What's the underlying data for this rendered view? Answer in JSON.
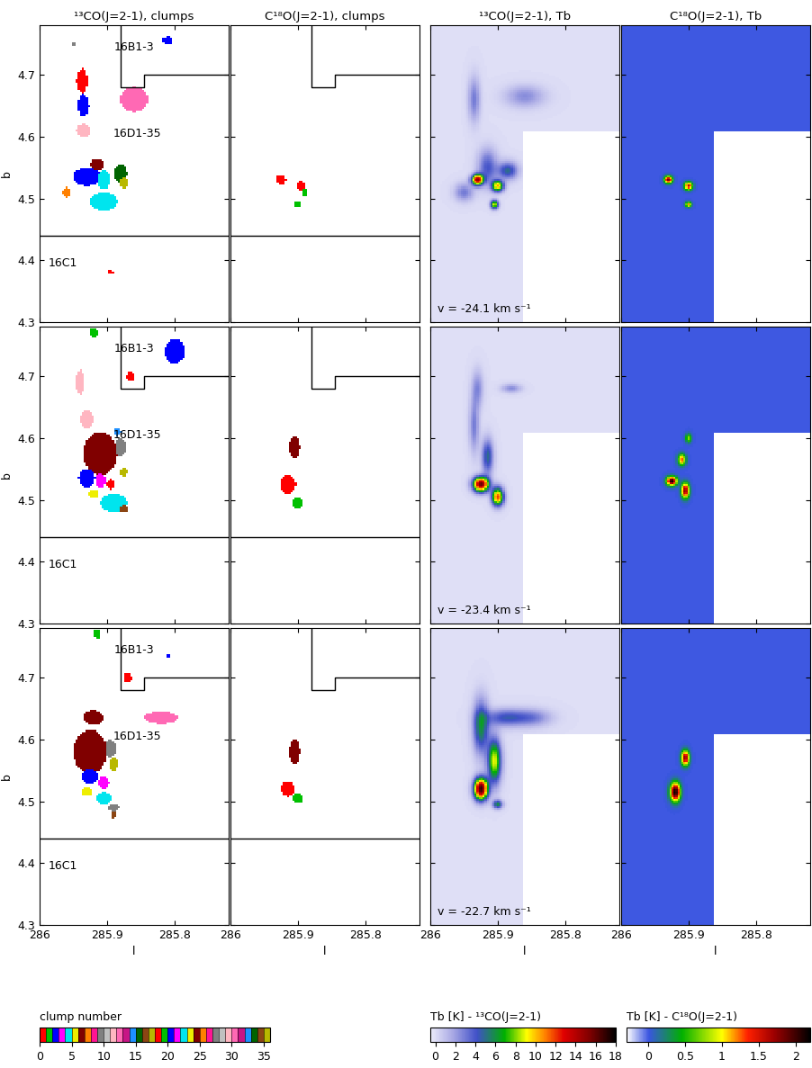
{
  "chart_data": {
    "type": "map_grid",
    "columns": [
      {
        "title": "¹³CO(J=2-1), clumps",
        "type": "clumps"
      },
      {
        "title": "C¹⁸O(J=2-1), clumps",
        "type": "clumps"
      },
      {
        "title": "¹³CO(J=2-1), Tb",
        "type": "heatmap"
      },
      {
        "title": "C¹⁸O(J=2-1), Tb",
        "type": "heatmap"
      }
    ],
    "xlabel": "l",
    "ylabel": "b",
    "xlim": [
      286,
      285.72
    ],
    "ylim": [
      4.3,
      4.78
    ],
    "xticks": [
      286,
      285.9,
      285.8
    ],
    "yticks": [
      4.3,
      4.4,
      4.5,
      4.6,
      4.7
    ],
    "fields": [
      {
        "label": "16B1-3",
        "l": 285.86,
        "b": 4.745
      },
      {
        "label": "16D1-35",
        "l": 285.855,
        "b": 4.605
      },
      {
        "label": "16C1",
        "l": 285.965,
        "b": 4.395
      }
    ],
    "boundaries": [
      [
        [
          286,
          4.44
        ],
        [
          285.72,
          4.44
        ]
      ],
      [
        [
          285.88,
          4.78
        ],
        [
          285.88,
          4.68
        ],
        [
          285.845,
          4.68
        ],
        [
          285.845,
          4.7
        ],
        [
          285.72,
          4.7
        ]
      ]
    ],
    "no_data": {
      "l": [
        285.864,
        285.72
      ],
      "b": [
        4.3,
        4.61
      ]
    },
    "rows": [
      {
        "velocity_label": "v = -24.1 km s⁻¹",
        "panels": [
          {
            "clumps": [
              {
                "id": 2,
                "l": 285.81,
                "b": 4.755,
                "dl": 0.008,
                "db": 0.006
              },
              {
                "id": 9,
                "l": 285.95,
                "b": 4.75,
                "dl": 0.004,
                "db": 0.004
              },
              {
                "id": 0,
                "l": 285.937,
                "b": 4.69,
                "dl": 0.008,
                "db": 0.02
              },
              {
                "id": 2,
                "l": 285.935,
                "b": 4.65,
                "dl": 0.008,
                "db": 0.018
              },
              {
                "id": 12,
                "l": 285.86,
                "b": 4.66,
                "dl": 0.02,
                "db": 0.02
              },
              {
                "id": 11,
                "l": 285.935,
                "b": 4.61,
                "dl": 0.01,
                "db": 0.01
              },
              {
                "id": 6,
                "l": 285.915,
                "b": 4.555,
                "dl": 0.01,
                "db": 0.01
              },
              {
                "id": 7,
                "l": 285.96,
                "b": 4.51,
                "dl": 0.006,
                "db": 0.008
              },
              {
                "id": 20,
                "l": 285.93,
                "b": 4.535,
                "dl": 0.02,
                "db": 0.015
              },
              {
                "id": 22,
                "l": 285.905,
                "b": 4.53,
                "dl": 0.01,
                "db": 0.015
              },
              {
                "id": 15,
                "l": 285.88,
                "b": 4.54,
                "dl": 0.01,
                "db": 0.015
              },
              {
                "id": 17,
                "l": 285.875,
                "b": 4.525,
                "dl": 0.006,
                "db": 0.008
              },
              {
                "id": 4,
                "l": 285.905,
                "b": 4.495,
                "dl": 0.02,
                "db": 0.015
              },
              {
                "id": 0,
                "l": 285.895,
                "b": 4.38,
                "dl": 0.005,
                "db": 0.003
              }
            ]
          },
          {
            "clumps": [
              {
                "id": 0,
                "l": 285.925,
                "b": 4.53,
                "dl": 0.007,
                "db": 0.008
              },
              {
                "id": 0,
                "l": 285.895,
                "b": 4.52,
                "dl": 0.006,
                "db": 0.008
              },
              {
                "id": 1,
                "l": 285.89,
                "b": 4.51,
                "dl": 0.004,
                "db": 0.005
              },
              {
                "id": 1,
                "l": 285.9,
                "b": 4.49,
                "dl": 0.005,
                "db": 0.005
              }
            ]
          },
          {
            "background": 0,
            "sources": [
              {
                "l": 285.93,
                "b": 4.53,
                "sl": 0.006,
                "sb": 0.006,
                "peak": 14
              },
              {
                "l": 285.9,
                "b": 4.52,
                "sl": 0.006,
                "sb": 0.006,
                "peak": 10
              },
              {
                "l": 285.905,
                "b": 4.49,
                "sl": 0.004,
                "sb": 0.005,
                "peak": 9
              },
              {
                "l": 285.915,
                "b": 4.55,
                "sl": 0.01,
                "sb": 0.02,
                "peak": 4
              },
              {
                "l": 285.885,
                "b": 4.545,
                "sl": 0.01,
                "sb": 0.01,
                "peak": 5
              },
              {
                "l": 285.935,
                "b": 4.66,
                "sl": 0.006,
                "sb": 0.025,
                "peak": 3
              },
              {
                "l": 285.86,
                "b": 4.665,
                "sl": 0.02,
                "sb": 0.012,
                "peak": 2.5
              },
              {
                "l": 285.95,
                "b": 4.51,
                "sl": 0.01,
                "sb": 0.01,
                "peak": 3
              }
            ]
          },
          {
            "background": 0,
            "sources": [
              {
                "l": 285.93,
                "b": 4.53,
                "sl": 0.004,
                "sb": 0.004,
                "peak": 1.8
              },
              {
                "l": 285.9,
                "b": 4.52,
                "sl": 0.004,
                "sb": 0.004,
                "peak": 1.6
              },
              {
                "l": 285.9,
                "b": 4.49,
                "sl": 0.003,
                "sb": 0.003,
                "peak": 1.2
              }
            ]
          }
        ]
      },
      {
        "velocity_label": "v = -23.4 km s⁻¹",
        "panels": [
          {
            "clumps": [
              {
                "id": 1,
                "l": 285.92,
                "b": 4.77,
                "dl": 0.006,
                "db": 0.008
              },
              {
                "id": 2,
                "l": 285.8,
                "b": 4.74,
                "dl": 0.015,
                "db": 0.02
              },
              {
                "id": 0,
                "l": 285.865,
                "b": 4.7,
                "dl": 0.006,
                "db": 0.008
              },
              {
                "id": 11,
                "l": 285.94,
                "b": 4.69,
                "dl": 0.006,
                "db": 0.02
              },
              {
                "id": 11,
                "l": 285.93,
                "b": 4.63,
                "dl": 0.01,
                "db": 0.015
              },
              {
                "id": 6,
                "l": 285.91,
                "b": 4.575,
                "dl": 0.025,
                "db": 0.035
              },
              {
                "id": 9,
                "l": 285.88,
                "b": 4.585,
                "dl": 0.008,
                "db": 0.015
              },
              {
                "id": 14,
                "l": 285.885,
                "b": 4.61,
                "dl": 0.006,
                "db": 0.006
              },
              {
                "id": 2,
                "l": 285.93,
                "b": 4.535,
                "dl": 0.012,
                "db": 0.015
              },
              {
                "id": 3,
                "l": 285.91,
                "b": 4.53,
                "dl": 0.008,
                "db": 0.012
              },
              {
                "id": 0,
                "l": 285.895,
                "b": 4.525,
                "dl": 0.006,
                "db": 0.008
              },
              {
                "id": 17,
                "l": 285.875,
                "b": 4.545,
                "dl": 0.005,
                "db": 0.008
              },
              {
                "id": 5,
                "l": 285.92,
                "b": 4.51,
                "dl": 0.008,
                "db": 0.006
              },
              {
                "id": 4,
                "l": 285.89,
                "b": 4.495,
                "dl": 0.02,
                "db": 0.015
              },
              {
                "id": 16,
                "l": 285.875,
                "b": 4.485,
                "dl": 0.006,
                "db": 0.006
              }
            ]
          },
          {
            "clumps": [
              {
                "id": 6,
                "l": 285.905,
                "b": 4.585,
                "dl": 0.008,
                "db": 0.018
              },
              {
                "id": 0,
                "l": 285.915,
                "b": 4.525,
                "dl": 0.012,
                "db": 0.015
              },
              {
                "id": 1,
                "l": 285.9,
                "b": 4.495,
                "dl": 0.007,
                "db": 0.01
              }
            ]
          },
          {
            "background": 0,
            "sources": [
              {
                "l": 285.925,
                "b": 4.525,
                "sl": 0.008,
                "sb": 0.008,
                "peak": 16
              },
              {
                "l": 285.9,
                "b": 4.505,
                "sl": 0.006,
                "sb": 0.01,
                "peak": 12
              },
              {
                "l": 285.915,
                "b": 4.57,
                "sl": 0.006,
                "sb": 0.02,
                "peak": 5
              },
              {
                "l": 285.935,
                "b": 4.62,
                "sl": 0.005,
                "sb": 0.03,
                "peak": 3
              },
              {
                "l": 285.93,
                "b": 4.68,
                "sl": 0.006,
                "sb": 0.02,
                "peak": 2.5
              },
              {
                "l": 285.88,
                "b": 4.68,
                "sl": 0.01,
                "sb": 0.005,
                "peak": 2.5
              }
            ]
          },
          {
            "background": 0,
            "sources": [
              {
                "l": 285.925,
                "b": 4.53,
                "sl": 0.005,
                "sb": 0.005,
                "peak": 2.2
              },
              {
                "l": 285.905,
                "b": 4.515,
                "sl": 0.004,
                "sb": 0.008,
                "peak": 1.8
              },
              {
                "l": 285.91,
                "b": 4.565,
                "sl": 0.004,
                "sb": 0.006,
                "peak": 1.3
              },
              {
                "l": 285.9,
                "b": 4.6,
                "sl": 0.003,
                "sb": 0.005,
                "peak": 0.8
              }
            ]
          }
        ]
      },
      {
        "velocity_label": "v = -22.7 km s⁻¹",
        "panels": [
          {
            "clumps": [
              {
                "id": 1,
                "l": 285.915,
                "b": 4.77,
                "dl": 0.005,
                "db": 0.008
              },
              {
                "id": 2,
                "l": 285.81,
                "b": 4.735,
                "dl": 0.004,
                "db": 0.004
              },
              {
                "id": 0,
                "l": 285.87,
                "b": 4.7,
                "dl": 0.006,
                "db": 0.008
              },
              {
                "id": 6,
                "l": 285.92,
                "b": 4.635,
                "dl": 0.015,
                "db": 0.012
              },
              {
                "id": 12,
                "l": 285.82,
                "b": 4.635,
                "dl": 0.025,
                "db": 0.01
              },
              {
                "id": 6,
                "l": 285.925,
                "b": 4.58,
                "dl": 0.025,
                "db": 0.035
              },
              {
                "id": 9,
                "l": 285.895,
                "b": 4.585,
                "dl": 0.008,
                "db": 0.015
              },
              {
                "id": 17,
                "l": 285.89,
                "b": 4.56,
                "dl": 0.006,
                "db": 0.01
              },
              {
                "id": 2,
                "l": 285.925,
                "b": 4.54,
                "dl": 0.012,
                "db": 0.012
              },
              {
                "id": 3,
                "l": 285.905,
                "b": 4.53,
                "dl": 0.008,
                "db": 0.01
              },
              {
                "id": 5,
                "l": 285.93,
                "b": 4.515,
                "dl": 0.008,
                "db": 0.006
              },
              {
                "id": 4,
                "l": 285.905,
                "b": 4.505,
                "dl": 0.012,
                "db": 0.01
              },
              {
                "id": 9,
                "l": 285.89,
                "b": 4.49,
                "dl": 0.008,
                "db": 0.006
              },
              {
                "id": 16,
                "l": 285.89,
                "b": 4.478,
                "dl": 0.004,
                "db": 0.006
              }
            ]
          },
          {
            "clumps": [
              {
                "id": 6,
                "l": 285.905,
                "b": 4.58,
                "dl": 0.008,
                "db": 0.02
              },
              {
                "id": 0,
                "l": 285.915,
                "b": 4.52,
                "dl": 0.01,
                "db": 0.012
              },
              {
                "id": 1,
                "l": 285.9,
                "b": 4.505,
                "dl": 0.008,
                "db": 0.008
              }
            ]
          },
          {
            "background": 0,
            "sources": [
              {
                "l": 285.925,
                "b": 4.52,
                "sl": 0.007,
                "sb": 0.012,
                "peak": 17
              },
              {
                "l": 285.905,
                "b": 4.565,
                "sl": 0.007,
                "sb": 0.025,
                "peak": 9
              },
              {
                "l": 285.925,
                "b": 4.62,
                "sl": 0.008,
                "sb": 0.03,
                "peak": 6
              },
              {
                "l": 285.89,
                "b": 4.635,
                "sl": 0.02,
                "sb": 0.01,
                "peak": 4
              },
              {
                "l": 285.85,
                "b": 4.635,
                "sl": 0.02,
                "sb": 0.01,
                "peak": 3
              },
              {
                "l": 285.9,
                "b": 4.495,
                "sl": 0.005,
                "sb": 0.005,
                "peak": 6
              }
            ]
          },
          {
            "background": 0,
            "sources": [
              {
                "l": 285.92,
                "b": 4.515,
                "sl": 0.005,
                "sb": 0.01,
                "peak": 2.2
              },
              {
                "l": 285.905,
                "b": 4.57,
                "sl": 0.004,
                "sb": 0.008,
                "peak": 1.8
              }
            ]
          }
        ]
      }
    ],
    "colorbars": [
      {
        "label": "clump number",
        "range": [
          0,
          36
        ],
        "ticks": [
          0,
          5,
          10,
          15,
          20,
          25,
          30,
          35
        ],
        "colors": [
          "#ff0000",
          "#00c000",
          "#0000ff",
          "#ff00ff",
          "#00e5ee",
          "#eeee00",
          "#800000",
          "#ff8000",
          "#ff1493",
          "#808080",
          "#c0c0c0",
          "#ffb6c1",
          "#ff69b4",
          "#c71585",
          "#1e90ff",
          "#006400",
          "#8b4513",
          "#b8b800",
          "#ff0000",
          "#00c000",
          "#0000ff",
          "#ff00ff",
          "#00e5ee",
          "#eeee00",
          "#800000",
          "#ff8000",
          "#ff1493",
          "#808080",
          "#c0c0c0",
          "#ffb6c1",
          "#ff69b4",
          "#c71585",
          "#1e90ff",
          "#006400",
          "#8b4513",
          "#b8b800"
        ]
      },
      {
        "label": "Tb [K] - ¹³CO(J=2-1)",
        "range": [
          -0.5,
          18
        ],
        "ticks": [
          0,
          2,
          4,
          6,
          8,
          10,
          12,
          14,
          16,
          18
        ]
      },
      {
        "label": "Tb [K] - C¹⁸O(J=2-1)",
        "range": [
          -0.3,
          2.2
        ],
        "ticks": [
          0,
          0.5,
          1,
          1.5,
          2
        ]
      }
    ]
  }
}
